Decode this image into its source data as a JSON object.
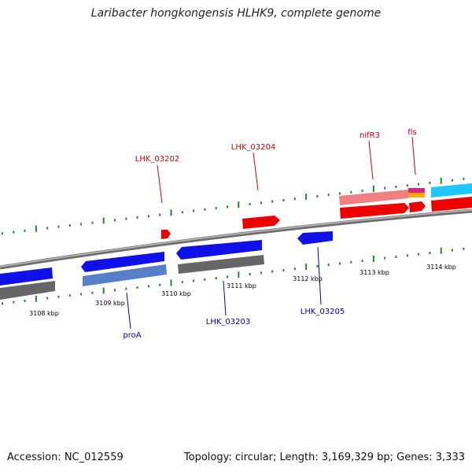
{
  "title": "Laribacter hongkongensis HLHK9, complete genome",
  "footer": {
    "accession": "Accession: NC_012559",
    "summary": "Topology: circular; Length: 3,169,329 bp; Genes: 3,333"
  },
  "colors": {
    "forward_gene": "#ff0000",
    "reverse_gene": "#0000ff",
    "forward_label": "#cc0000",
    "reverse_label": "#0000aa",
    "tick": "#228822",
    "backbone": "#888888"
  },
  "scale": {
    "ticks": [
      {
        "label": "3108 kbp"
      },
      {
        "label": "3109 kbp"
      },
      {
        "label": "3110 kbp"
      },
      {
        "label": "3111 kbp"
      },
      {
        "label": "3112 kbp"
      },
      {
        "label": "3113 kbp"
      },
      {
        "label": "3114 kbp"
      }
    ]
  },
  "gene_labels": {
    "forward": [
      {
        "name": "LHK_03202"
      },
      {
        "name": "LHK_03204"
      },
      {
        "name": "nifR3"
      },
      {
        "name": "fis"
      }
    ],
    "reverse": [
      {
        "name": "proA"
      },
      {
        "name": "LHK_03203"
      },
      {
        "name": "LHK_03205"
      }
    ]
  }
}
